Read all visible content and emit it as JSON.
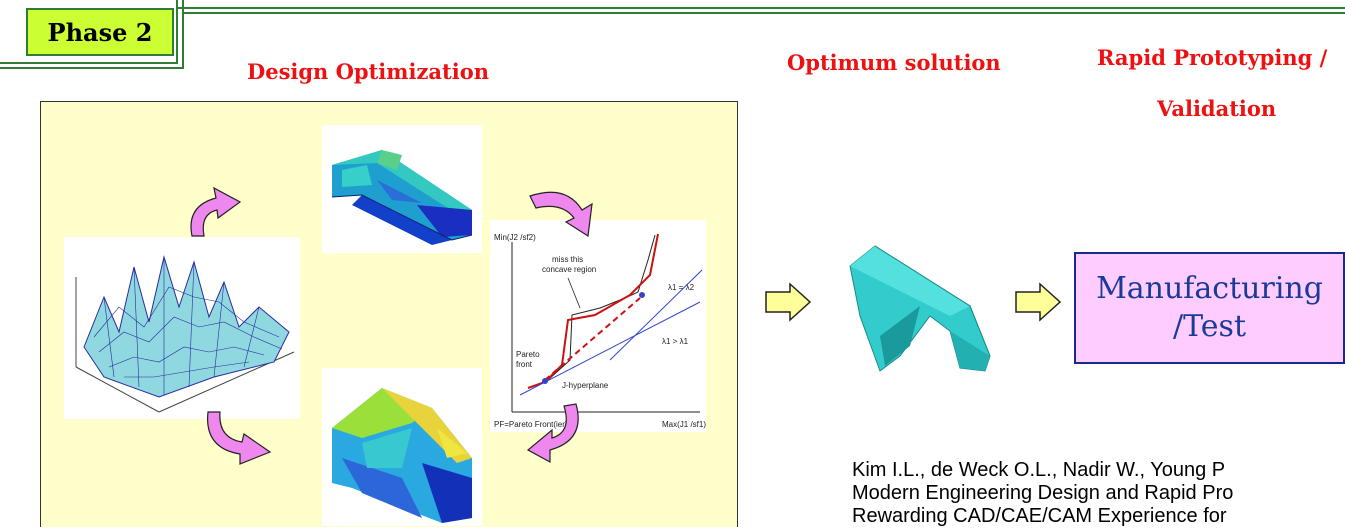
{
  "phase_label": "Phase 2",
  "headings": {
    "design_optimization": "Design Optimization",
    "optimum_solution": "Optimum solution",
    "rapid_prototyping": "Rapid Prototyping /",
    "validation": "Validation"
  },
  "pareto_plot": {
    "y_axis_label": "Min(J2 /sf2)",
    "x_axis_label": "Max(J1 /sf1)",
    "annotation_concave": "miss this concave region",
    "annotation_concave_line1": "miss this",
    "annotation_concave_line2": "concave region",
    "pareto_front_line1": "Pareto",
    "pareto_front_line2": "front",
    "hyperplane_label": "J-hyperplane",
    "lambda_label_1": "λ1 = λ2",
    "lambda_label_2": "λ1 > λ1",
    "footnote": "PF=Pareto Front(ier)"
  },
  "manufacturing_box": {
    "line1": "Manufacturing",
    "line2": "/Test"
  },
  "citation": {
    "line1": "Kim I.L., de Weck O.L., Nadir W., Young P",
    "line2": "Modern Engineering Design and Rapid Pro",
    "line3": "Rewarding CAD/CAE/CAM Experience for"
  },
  "colors": {
    "phase_badge_bg": "#ccff33",
    "heading_red": "#ee1111",
    "panel_bg": "#ffffcc",
    "manufacturing_bg": "#ffccff",
    "manufacturing_text": "#1a3a9a",
    "arrow_fill": "#ffff99",
    "cycle_arrow": "#ee88ee",
    "part_cyan": "#33cccc"
  },
  "icons": {
    "cycle_arrows": "curved-arrow-icon",
    "flow_arrows": "right-arrow-icon"
  }
}
